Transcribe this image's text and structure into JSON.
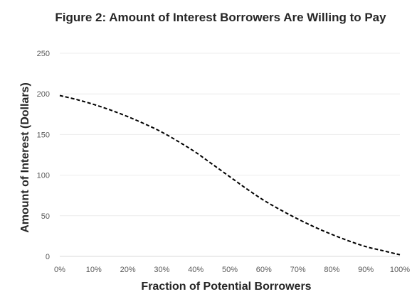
{
  "chart_data": {
    "type": "line",
    "title": "Figure 2: Amount of Interest Borrowers Are Willing to Pay",
    "xlabel": "Fraction of Potential Borrowers",
    "ylabel": "Amount of Interest (Dollars)",
    "x_ticks": [
      "0%",
      "10%",
      "20%",
      "30%",
      "40%",
      "50%",
      "60%",
      "70%",
      "80%",
      "90%",
      "100%"
    ],
    "y_ticks": [
      "0",
      "50",
      "100",
      "150",
      "200",
      "250"
    ],
    "xlim": [
      0,
      100
    ],
    "ylim": [
      0,
      250
    ],
    "grid": "horizontal",
    "legend": "none",
    "series": [
      {
        "line_style": "dashed",
        "color": "#000000",
        "x": [
          0,
          5,
          10,
          15,
          20,
          25,
          30,
          35,
          40,
          45,
          50,
          55,
          60,
          65,
          70,
          75,
          80,
          85,
          90,
          95,
          100
        ],
        "y": [
          198,
          193,
          187,
          180,
          172,
          163,
          153,
          141,
          128,
          113,
          98,
          83,
          69,
          57,
          46,
          36,
          27,
          19,
          12,
          7,
          2
        ]
      }
    ]
  }
}
